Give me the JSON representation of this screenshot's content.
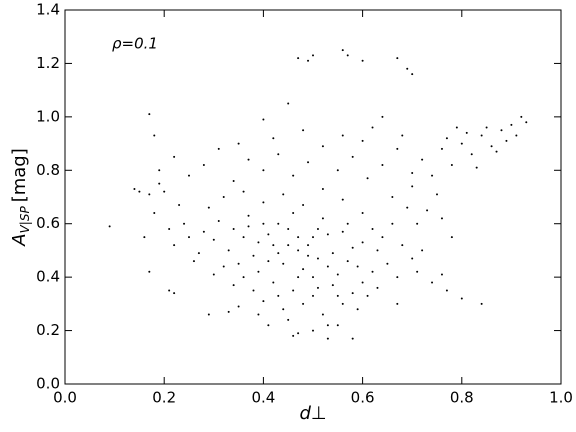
{
  "chart_data": {
    "type": "scatter",
    "annotation": "ρ=0.1",
    "xlabel": "d⊥",
    "ylabel": {
      "symbol": "A",
      "subscript": "V|SP",
      "unit": "[mag]"
    },
    "color": "#000000",
    "xlim": [
      0,
      1
    ],
    "ylim": [
      0,
      1.4
    ],
    "xticks": [
      {
        "value": 0,
        "label": "0.0"
      },
      0.2,
      0.4,
      0.6,
      0.8,
      {
        "value": 1,
        "label": "1.0"
      }
    ],
    "yticks": [
      {
        "value": 0,
        "label": "0.0"
      },
      0.2,
      0.4,
      0.6,
      0.8,
      {
        "value": 1,
        "label": "1.0"
      },
      1.2,
      1.4
    ],
    "x": [
      0.36,
      0.38,
      0.4,
      0.42,
      0.44,
      0.45,
      0.47,
      0.48,
      0.5,
      0.51,
      0.52,
      0.54,
      0.55,
      0.56,
      0.58,
      0.59,
      0.37,
      0.39,
      0.41,
      0.43,
      0.46,
      0.49,
      0.5,
      0.53,
      0.57,
      0.6,
      0.34,
      0.33,
      0.35,
      0.31,
      0.3,
      0.28,
      0.27,
      0.29,
      0.32,
      0.36,
      0.4,
      0.44,
      0.48,
      0.52,
      0.56,
      0.6,
      0.62,
      0.63,
      0.65,
      0.62,
      0.64,
      0.66,
      0.68,
      0.7,
      0.72,
      0.42,
      0.46,
      0.5,
      0.54,
      0.58,
      0.4,
      0.44,
      0.48,
      0.52,
      0.56,
      0.6,
      0.38,
      0.36,
      0.34,
      0.32,
      0.3,
      0.26,
      0.25,
      0.24,
      0.22,
      0.23,
      0.21,
      0.2,
      0.18,
      0.19,
      0.17,
      0.16,
      0.17,
      0.21,
      0.22,
      0.29,
      0.33,
      0.41,
      0.45,
      0.47,
      0.5,
      0.53,
      0.55,
      0.35,
      0.39,
      0.43,
      0.47,
      0.51,
      0.55,
      0.59,
      0.61,
      0.63,
      0.67,
      0.71,
      0.74,
      0.77,
      0.8,
      0.84,
      0.67,
      0.45,
      0.49,
      0.47,
      0.43,
      0.41,
      0.53,
      0.57,
      0.39,
      0.37,
      0.51,
      0.25,
      0.28,
      0.31,
      0.34,
      0.37,
      0.4,
      0.43,
      0.46,
      0.49,
      0.52,
      0.55,
      0.58,
      0.61,
      0.64,
      0.67,
      0.7,
      0.42,
      0.48,
      0.56,
      0.35,
      0.22,
      0.18,
      0.17,
      0.19,
      0.14,
      0.15,
      0.66,
      0.7,
      0.72,
      0.74,
      0.76,
      0.78,
      0.8,
      0.82,
      0.84,
      0.86,
      0.88,
      0.9,
      0.92,
      0.93,
      0.91,
      0.89,
      0.87,
      0.85,
      0.83,
      0.81,
      0.79,
      0.77,
      0.75,
      0.73,
      0.71,
      0.69,
      0.76,
      0.78,
      0.68,
      0.64,
      0.62,
      0.6,
      0.09,
      0.45,
      0.47,
      0.49,
      0.5,
      0.56,
      0.57,
      0.6,
      0.67,
      0.69,
      0.7,
      0.4,
      0.76,
      0.58,
      0.46,
      0.53
    ],
    "values": [
      0.55,
      0.48,
      0.6,
      0.52,
      0.45,
      0.58,
      0.5,
      0.43,
      0.55,
      0.47,
      0.62,
      0.49,
      0.41,
      0.57,
      0.51,
      0.44,
      0.63,
      0.42,
      0.56,
      0.49,
      0.64,
      0.52,
      0.4,
      0.56,
      0.46,
      0.53,
      0.58,
      0.5,
      0.45,
      0.61,
      0.54,
      0.57,
      0.49,
      0.66,
      0.7,
      0.72,
      0.68,
      0.71,
      0.67,
      0.73,
      0.69,
      0.64,
      0.58,
      0.5,
      0.45,
      0.42,
      0.55,
      0.6,
      0.52,
      0.47,
      0.5,
      0.38,
      0.35,
      0.33,
      0.37,
      0.34,
      0.31,
      0.28,
      0.3,
      0.26,
      0.3,
      0.38,
      0.35,
      0.4,
      0.37,
      0.44,
      0.41,
      0.46,
      0.55,
      0.6,
      0.52,
      0.67,
      0.58,
      0.72,
      0.64,
      0.75,
      0.71,
      0.55,
      0.42,
      0.35,
      0.34,
      0.26,
      0.27,
      0.22,
      0.24,
      0.19,
      0.2,
      0.17,
      0.22,
      0.29,
      0.26,
      0.33,
      0.4,
      0.36,
      0.33,
      0.28,
      0.33,
      0.36,
      0.4,
      0.42,
      0.38,
      0.35,
      0.32,
      0.3,
      0.3,
      0.52,
      0.48,
      0.55,
      0.6,
      0.46,
      0.44,
      0.6,
      0.53,
      0.59,
      0.58,
      0.78,
      0.82,
      0.88,
      0.76,
      0.84,
      0.8,
      0.86,
      0.78,
      0.83,
      0.89,
      0.8,
      0.85,
      0.77,
      0.82,
      0.88,
      0.79,
      0.92,
      0.95,
      0.93,
      0.9,
      0.85,
      0.93,
      1.01,
      0.8,
      0.73,
      0.72,
      0.7,
      0.74,
      0.84,
      0.78,
      0.88,
      0.82,
      0.9,
      0.86,
      0.93,
      0.89,
      0.95,
      0.97,
      1.0,
      0.98,
      0.93,
      0.91,
      0.87,
      0.96,
      0.81,
      0.94,
      0.96,
      0.92,
      0.71,
      0.65,
      0.6,
      0.66,
      0.62,
      0.55,
      0.93,
      1.0,
      0.96,
      0.91,
      0.59,
      1.05,
      1.22,
      1.21,
      1.23,
      1.25,
      1.23,
      1.21,
      1.22,
      1.18,
      1.16,
      0.99,
      0.41,
      0.17,
      0.18,
      0.22
    ]
  }
}
